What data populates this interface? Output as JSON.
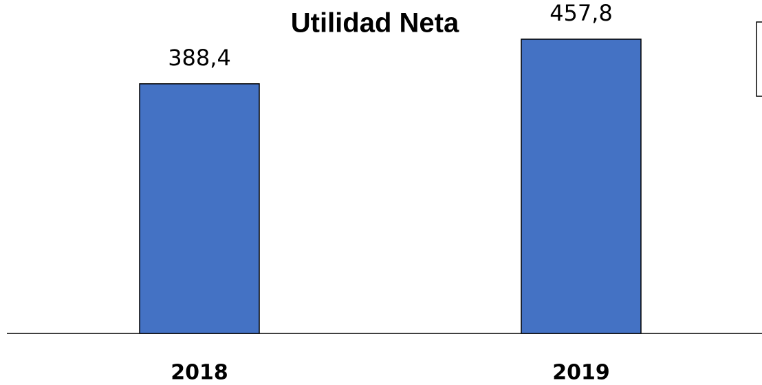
{
  "chart_data": {
    "type": "bar",
    "title": "Utilidad Neta",
    "categories": [
      "2018",
      "2019"
    ],
    "values": [
      388.4,
      457.8
    ],
    "value_labels": [
      "388,4",
      "457,8"
    ],
    "color": "#4472c4"
  }
}
